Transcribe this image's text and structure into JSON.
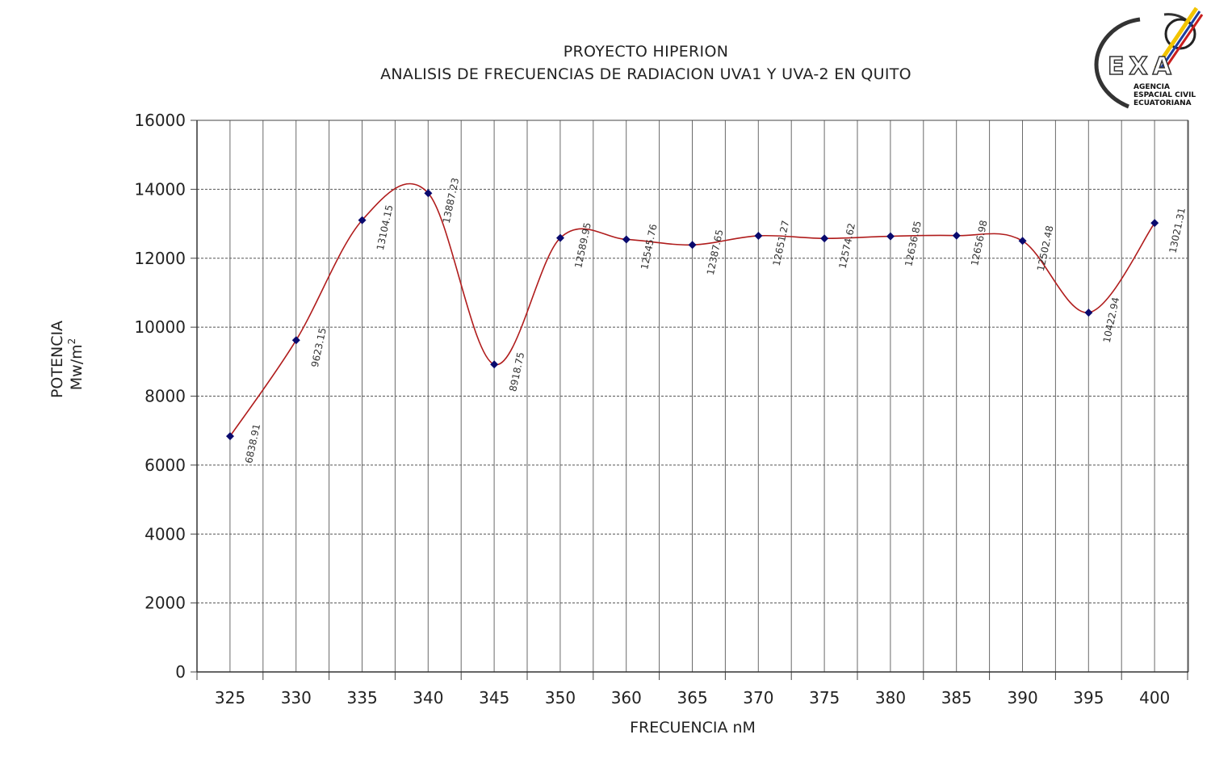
{
  "logo": {
    "letters": "EXA",
    "text_lines": [
      "AGENCIA",
      "ESPACIAL CIVIL",
      "ECUATORIANA"
    ]
  },
  "chart_data": {
    "type": "line",
    "title": "PROYECTO HIPERION",
    "subtitle": "ANALISIS DE FRECUENCIAS DE RADIACION UVA1 Y UVA-2 EN QUITO",
    "xlabel": "FRECUENCIA nM",
    "ylabel_line1": "POTENCIA",
    "ylabel_line2": "Mw/m",
    "ylabel_superscript": "2",
    "categories": [
      "325",
      "330",
      "335",
      "340",
      "345",
      "350",
      "360",
      "365",
      "370",
      "375",
      "380",
      "385",
      "390",
      "395",
      "400"
    ],
    "values": [
      6838.91,
      9623.15,
      13104.15,
      13887.23,
      8918.75,
      12589.95,
      12545.76,
      12387.65,
      12651.27,
      12574.62,
      12636.85,
      12656.98,
      12502.48,
      10422.94,
      13021.31
    ],
    "data_labels": [
      "6838.91",
      "9623.15",
      "13104.15",
      "13887.23",
      "8918.75",
      "12589.95",
      "12545.76",
      "12387.65",
      "12651.27",
      "12574.62",
      "12636.85",
      "12656.98",
      "12502.48",
      "10422.94",
      "13021.31"
    ],
    "ylim": [
      0,
      16000
    ],
    "yticks": [
      0,
      2000,
      4000,
      6000,
      8000,
      10000,
      12000,
      14000,
      16000
    ],
    "grid": true,
    "line_style": "smooth",
    "line_color": "#b01c1c",
    "marker_color": "#0a0a6e",
    "grid_color": "#555555"
  }
}
